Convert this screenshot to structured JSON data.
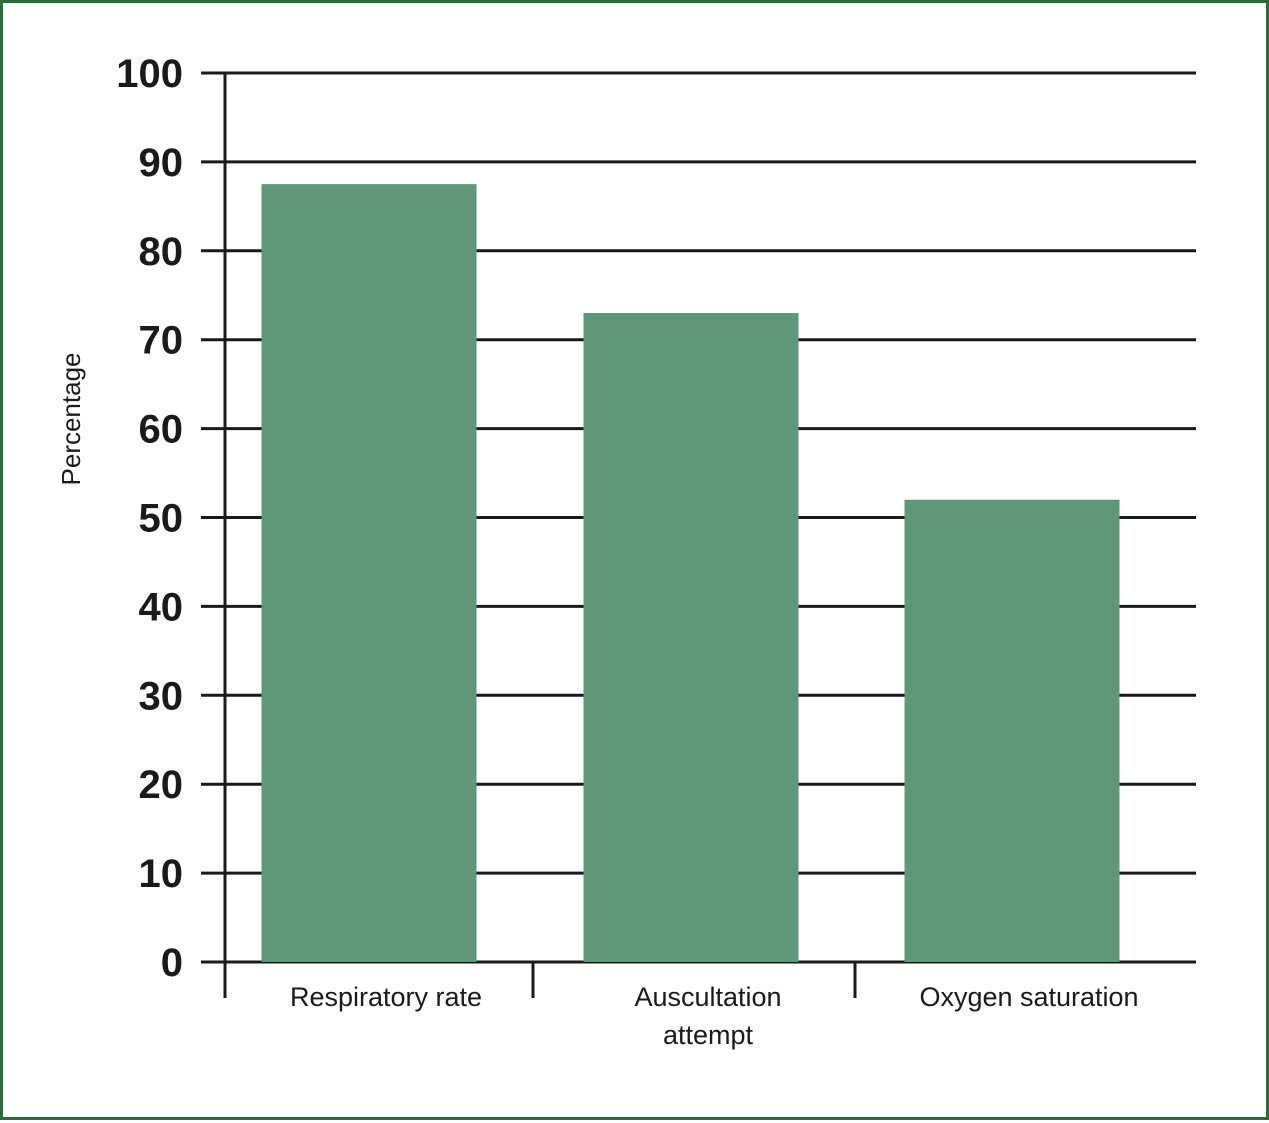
{
  "chart_data": {
    "type": "bar",
    "categories": [
      "Respiratory rate",
      "Auscultation attempt",
      "Oxygen saturation"
    ],
    "category_lines": [
      [
        "Respiratory rate"
      ],
      [
        "Auscultation",
        "attempt"
      ],
      [
        "Oxygen saturation"
      ]
    ],
    "values": [
      87.5,
      73,
      52
    ],
    "title": "",
    "xlabel": "",
    "ylabel": "Percentage",
    "ylim": [
      0,
      100
    ],
    "yticks": [
      0,
      10,
      20,
      30,
      40,
      50,
      60,
      70,
      80,
      90,
      100
    ],
    "grid": true,
    "legend": "none",
    "bar_color": "#5e9878",
    "frame_color": "#2e6b3a"
  }
}
